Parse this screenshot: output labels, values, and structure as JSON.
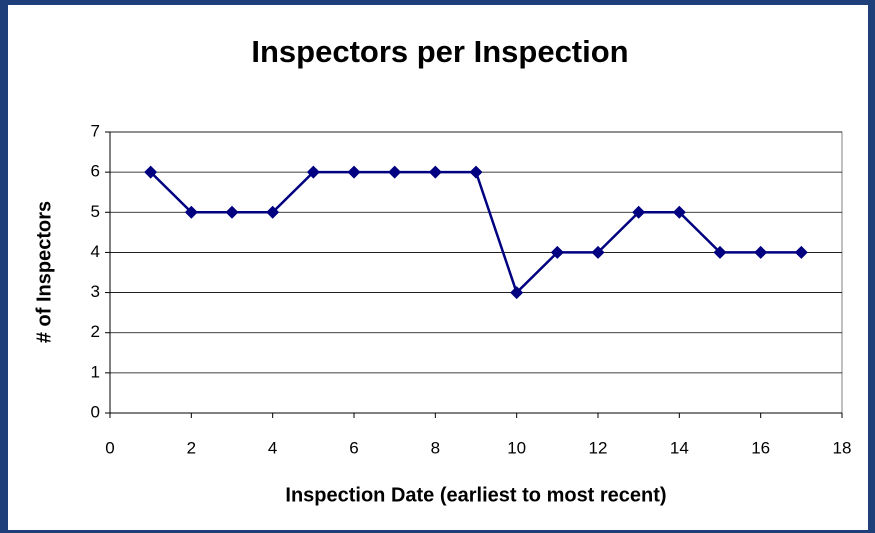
{
  "chart_data": {
    "type": "line",
    "title": "Inspectors per Inspection",
    "x_label": "Inspection Date (earliest to most recent)",
    "y_label": "# of Inspectors",
    "x": [
      1,
      2,
      3,
      4,
      5,
      6,
      7,
      8,
      9,
      10,
      11,
      12,
      13,
      14,
      15,
      16,
      17
    ],
    "values": [
      6,
      5,
      5,
      5,
      6,
      6,
      6,
      6,
      6,
      3,
      4,
      4,
      5,
      5,
      4,
      4,
      4
    ],
    "color": "#000080",
    "marker": "diamond",
    "xlim": [
      0,
      18
    ],
    "xticks": [
      0,
      2,
      4,
      6,
      8,
      10,
      12,
      14,
      16,
      18
    ],
    "ylim": [
      0,
      7
    ],
    "yticks": [
      0,
      1,
      2,
      3,
      4,
      5,
      6,
      7
    ],
    "grid": true
  }
}
